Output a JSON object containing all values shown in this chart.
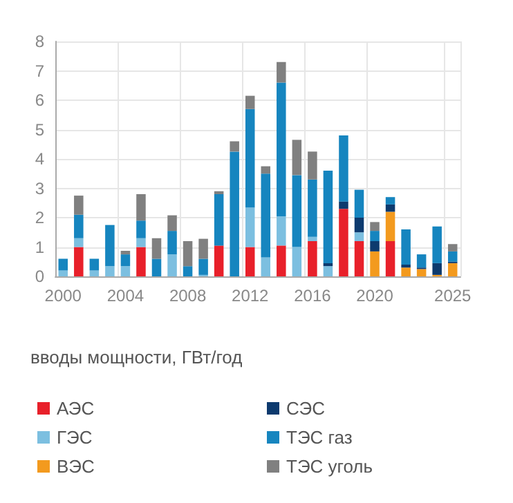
{
  "chart_data": {
    "type": "bar",
    "stacked": true,
    "ylabel": "вводы мощности, ГВт/год",
    "categories": [
      "2000",
      null,
      null,
      null,
      "2004",
      null,
      null,
      null,
      "2008",
      null,
      null,
      null,
      "2012",
      null,
      null,
      null,
      "2016",
      null,
      null,
      null,
      "2020",
      null,
      null,
      null,
      null,
      "2025"
    ],
    "series": [
      {
        "name": "АЭС",
        "color": "#e8202a",
        "values": [
          0,
          1.0,
          0,
          0,
          0,
          1.0,
          0,
          0,
          0,
          0,
          1.05,
          0,
          1.0,
          0,
          1.05,
          0,
          1.2,
          0,
          2.3,
          1.2,
          0,
          1.2,
          0,
          0,
          0,
          0
        ]
      },
      {
        "name": "ГЭС",
        "color": "#7cbfe0",
        "values": [
          0.2,
          0.3,
          0.2,
          0.35,
          0.35,
          0.3,
          0,
          0.75,
          0,
          0.05,
          0,
          0,
          1.35,
          0.65,
          1.0,
          1.0,
          0.15,
          0.35,
          0,
          0.3,
          0,
          0,
          0,
          0,
          0,
          0
        ]
      },
      {
        "name": "ВЭС",
        "color": "#f39a1e",
        "values": [
          0,
          0,
          0,
          0,
          0,
          0,
          0,
          0,
          0,
          0,
          0,
          0,
          0,
          0,
          0,
          0,
          0,
          0,
          0,
          0,
          0.85,
          1.0,
          0.3,
          0.25,
          0.05,
          0.45
        ]
      },
      {
        "name": "СЭС",
        "color": "#0d3a6e",
        "values": [
          0,
          0,
          0,
          0,
          0,
          0,
          0,
          0,
          0,
          0,
          0,
          0,
          0,
          0,
          0,
          0,
          0,
          0.1,
          0.25,
          0.5,
          0.35,
          0.25,
          0.1,
          0.05,
          0.4,
          0.05
        ]
      },
      {
        "name": "ТЭС газ",
        "color": "#1685bf",
        "values": [
          0.4,
          0.8,
          0.4,
          1.4,
          0.4,
          0.6,
          0.6,
          0.8,
          0.35,
          0.55,
          1.75,
          4.25,
          3.35,
          2.85,
          4.55,
          2.45,
          1.95,
          3.15,
          2.25,
          0.95,
          0.35,
          0.25,
          1.2,
          0.45,
          1.25,
          0.35
        ]
      },
      {
        "name": "ТЭС уголь",
        "color": "#808080",
        "values": [
          0,
          0.65,
          0,
          0,
          0.12,
          0.9,
          0.7,
          0.53,
          0.85,
          0.68,
          0.1,
          0.35,
          0.45,
          0.25,
          0.7,
          1.2,
          0.95,
          0,
          0,
          0,
          0.3,
          0,
          0,
          0,
          0,
          0.25
        ]
      }
    ],
    "ylim": [
      0,
      8
    ],
    "yticks": [
      0,
      1,
      2,
      3,
      4,
      5,
      6,
      7,
      8
    ],
    "grid": true,
    "legend": "bottom"
  }
}
